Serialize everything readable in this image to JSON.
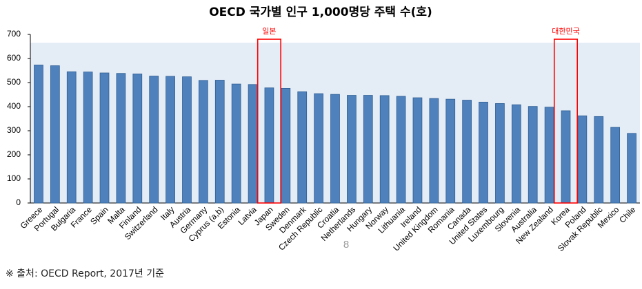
{
  "chart_data": {
    "type": "bar",
    "title": "OECD 국가별 인구 1,000명당 주택 수(호)",
    "categories": [
      "Greece",
      "Portugal",
      "Bulgaria",
      "France",
      "Spain",
      "Malta",
      "Finland",
      "Switzerland",
      "Italy",
      "Austria",
      "Germany",
      "Cyprus (a,b)",
      "Estonia",
      "Latvia",
      "Japan",
      "Sweden",
      "Denmark",
      "Czech Republic",
      "Croatia",
      "Netherlands",
      "Hungary",
      "Norway",
      "Lithuania",
      "Ireland",
      "United Kingdom",
      "Romania",
      "Canada",
      "United States",
      "Luxembourg",
      "Slovenia",
      "Australia",
      "New Zealand",
      "Korea",
      "Poland",
      "Slovak Republic",
      "Mexico",
      "Chile"
    ],
    "values": [
      573,
      570,
      545,
      544,
      540,
      538,
      536,
      527,
      526,
      524,
      509,
      510,
      494,
      492,
      478,
      476,
      462,
      454,
      451,
      447,
      447,
      446,
      443,
      437,
      434,
      431,
      427,
      419,
      413,
      408,
      401,
      398,
      383,
      362,
      359,
      314,
      289
    ],
    "color": "#4f81bd",
    "ylim": [
      0,
      700
    ],
    "yticks": [
      0,
      100,
      200,
      300,
      400,
      500,
      600,
      700
    ],
    "grid": false,
    "annotations": [
      {
        "text": "일본",
        "category": "Japan",
        "color": "#ff0000"
      },
      {
        "text": "대한민국",
        "category": "Korea",
        "color": "#ff0000"
      }
    ]
  },
  "footer": {
    "page_number": "8",
    "source": "※ 출처: OECD Report, 2017년 기준"
  }
}
